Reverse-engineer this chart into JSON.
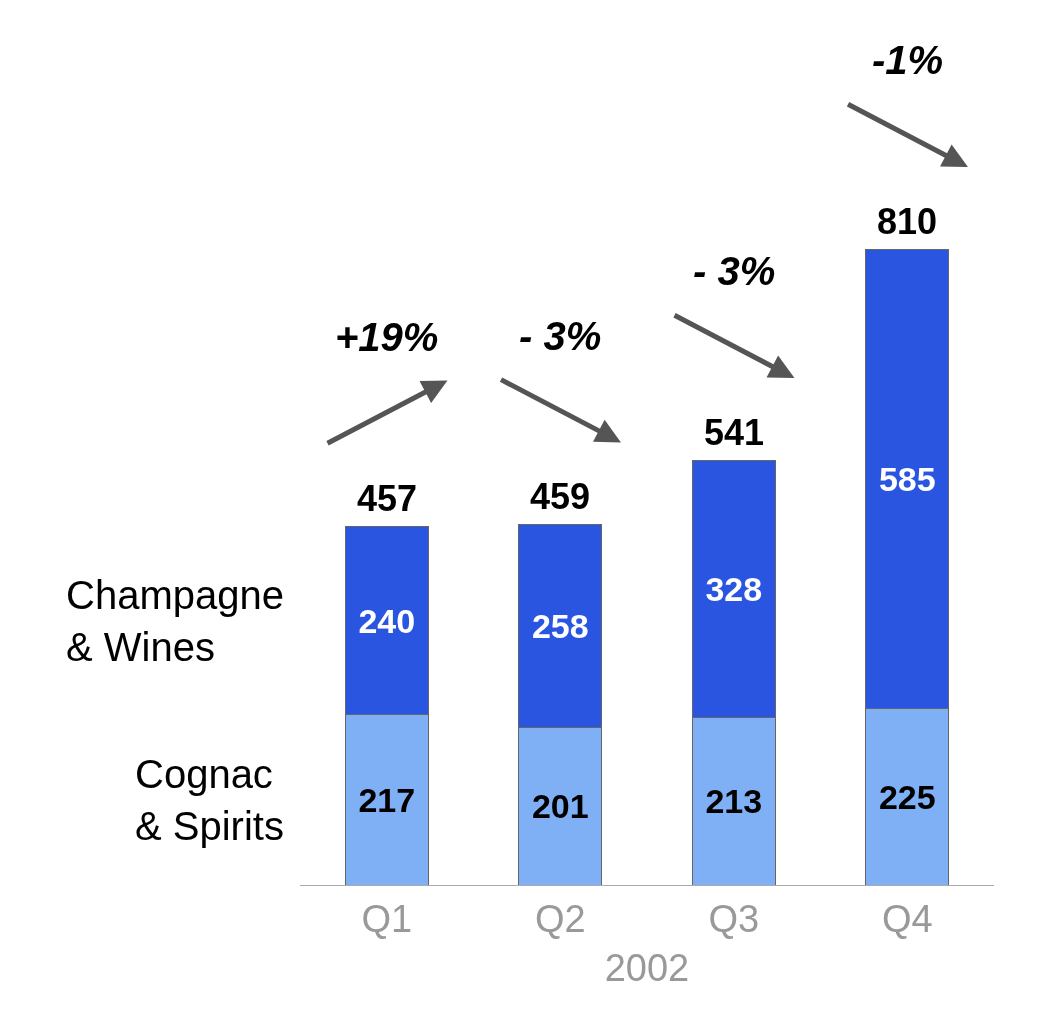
{
  "chart_data": {
    "type": "bar",
    "stacked": true,
    "xlabel": "2002",
    "categories": [
      "Q1",
      "Q2",
      "Q3",
      "Q4"
    ],
    "series": [
      {
        "name": "Cognac & Spirits",
        "color": "#7fb0f5",
        "values": [
          217,
          201,
          213,
          225
        ]
      },
      {
        "name": "Champagne & Wines",
        "color": "#2a55e0",
        "values": [
          240,
          258,
          328,
          585
        ]
      }
    ],
    "data_labels": true,
    "totals": [
      "457",
      "459",
      "541",
      "810"
    ],
    "annotations": [
      "+19%",
      "- 3%",
      "- 3%",
      "-1%"
    ],
    "legend": false
  }
}
